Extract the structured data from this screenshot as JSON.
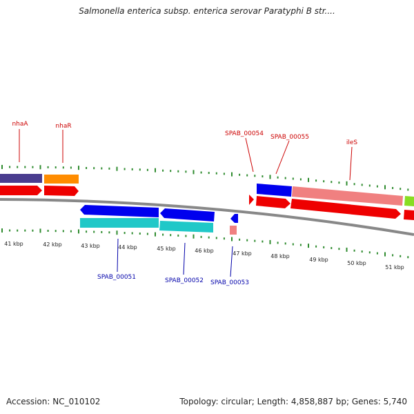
{
  "title": "Salmonella enterica subsp. enterica serovar Paratyphi B str....",
  "footer": {
    "accession": "Accession: NC_010102",
    "stats": "Topology: circular; Length: 4,858,887 bp; Genes: 5,740"
  },
  "colors": {
    "forward_label": "#cc0000",
    "reverse_label": "#0000aa",
    "tick": "#2e8b2e",
    "backbone": "#888888"
  },
  "forward_labels": [
    "nhaA",
    "nhaR",
    "SPAB_00054",
    "SPAB_00055",
    "ileS"
  ],
  "reverse_labels": [
    "SPAB_00051",
    "SPAB_00052",
    "SPAB_00053"
  ],
  "kbp_labels": [
    "41 kbp",
    "42 kbp",
    "43 kbp",
    "44 kbp",
    "45 kbp",
    "46 kbp",
    "47 kbp",
    "48 kbp",
    "49 kbp",
    "50 kbp",
    "51 kbp"
  ]
}
